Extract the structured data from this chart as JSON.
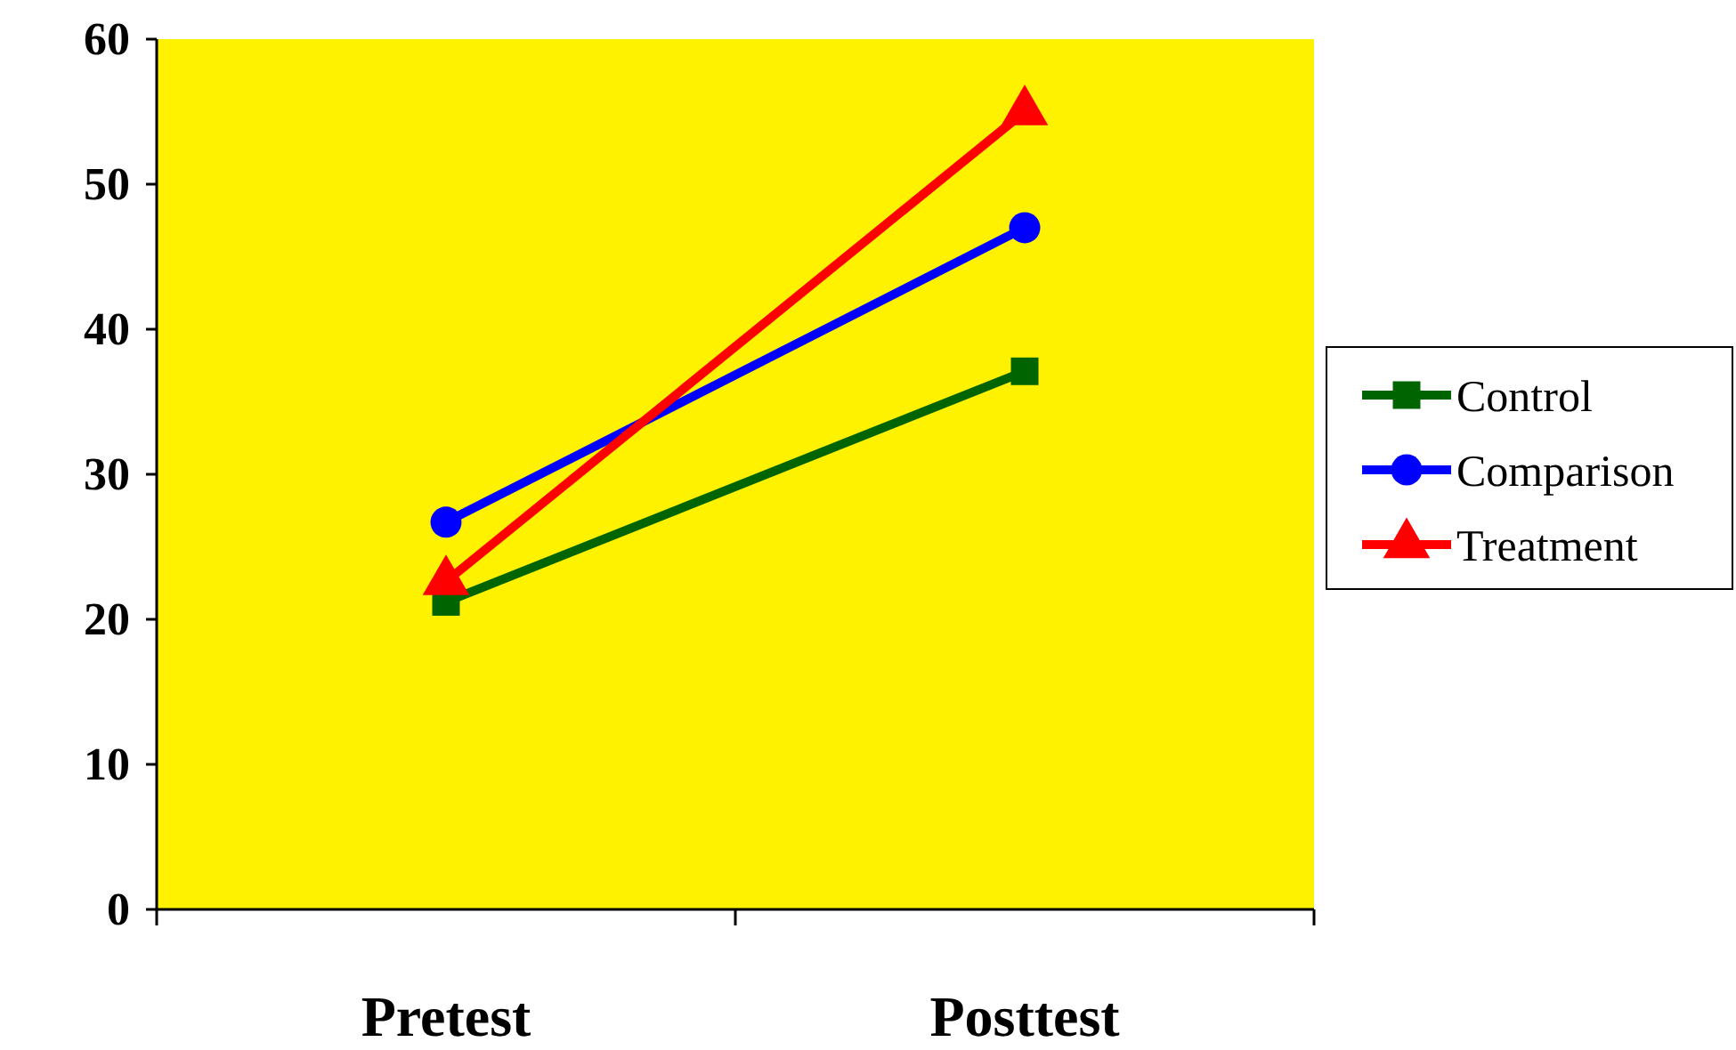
{
  "chart_data": {
    "type": "line",
    "categories": [
      "Pretest",
      "Posttest"
    ],
    "series": [
      {
        "name": "Control",
        "color": "#006400",
        "marker": "square",
        "values": [
          21.2,
          37.1
        ]
      },
      {
        "name": "Comparison",
        "color": "#0000ff",
        "marker": "circle",
        "values": [
          26.7,
          47
        ]
      },
      {
        "name": "Treatment",
        "color": "#ff0000",
        "marker": "triangle",
        "values": [
          22.6,
          55
        ]
      }
    ],
    "ylim": [
      0,
      60
    ],
    "yticks": [
      0,
      10,
      20,
      30,
      40,
      50,
      60
    ],
    "grid": false,
    "legend": "right"
  }
}
